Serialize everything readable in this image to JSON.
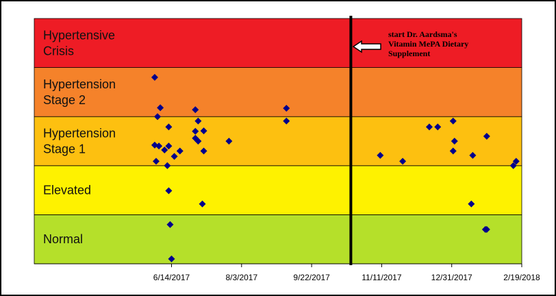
{
  "chart_data": {
    "type": "scatter",
    "xlim": [
      "2017-03-08",
      "2018-02-19"
    ],
    "xticks": [
      {
        "value": "2017-06-14",
        "label": "6/14/2017"
      },
      {
        "value": "2017-08-03",
        "label": "8/3/2017"
      },
      {
        "value": "2017-09-22",
        "label": "9/22/2017"
      },
      {
        "value": "2017-11-11",
        "label": "11/11/2017"
      },
      {
        "value": "2017-12-31",
        "label": "12/31/2017"
      },
      {
        "value": "2018-02-19",
        "label": "2/19/2018"
      }
    ],
    "ylim": [
      0,
      5
    ],
    "bands": [
      {
        "lines": [
          "Normal"
        ],
        "from": 0,
        "to": 1,
        "color": "#b5e02a"
      },
      {
        "lines": [
          "Elevated"
        ],
        "from": 1,
        "to": 2,
        "color": "#fef200"
      },
      {
        "lines": [
          "Hypertension",
          "Stage 1"
        ],
        "from": 2,
        "to": 3,
        "color": "#fdc010"
      },
      {
        "lines": [
          "Hypertension",
          "Stage 2"
        ],
        "from": 3,
        "to": 4,
        "color": "#f5822a"
      },
      {
        "lines": [
          "Hypertensive",
          "Crisis"
        ],
        "from": 4,
        "to": 5,
        "color": "#ee1c25"
      }
    ],
    "marker_line": {
      "x": "2017-10-20",
      "lines": [
        "start Dr. Aardsma's",
        "Vitamin MePA Dietary",
        "Supplement"
      ]
    },
    "series": [
      {
        "color": "#00008b",
        "x": [
          "2017-06-02",
          "2017-06-06",
          "2017-06-04",
          "2017-06-12",
          "2017-06-02",
          "2017-06-05",
          "2017-06-09",
          "2017-06-12",
          "2017-06-03",
          "2017-06-16",
          "2017-06-20",
          "2017-06-11",
          "2017-06-12",
          "2017-06-13",
          "2017-06-14",
          "2017-07-01",
          "2017-07-03",
          "2017-07-01",
          "2017-07-07",
          "2017-07-01",
          "2017-07-03",
          "2017-07-07",
          "2017-07-06",
          "2017-07-25",
          "2017-09-04",
          "2017-09-04",
          "2017-11-10",
          "2017-11-26",
          "2017-12-15",
          "2017-12-21",
          "2018-01-01",
          "2018-01-02",
          "2018-01-01",
          "2018-01-15",
          "2018-01-25",
          "2018-01-14",
          "2018-01-24",
          "2018-01-25",
          "2018-02-13",
          "2018-02-15"
        ],
        "values": [
          3.8,
          3.18,
          3.0,
          2.79,
          2.42,
          2.4,
          2.32,
          2.4,
          2.09,
          2.19,
          2.3,
          2.0,
          1.49,
          0.8,
          0.1,
          3.14,
          2.91,
          2.7,
          2.71,
          2.56,
          2.5,
          2.3,
          1.22,
          2.5,
          3.17,
          2.91,
          2.21,
          2.09,
          2.79,
          2.79,
          2.91,
          2.5,
          2.3,
          2.21,
          2.6,
          1.22,
          0.7,
          0.7,
          2.0,
          2.09
        ]
      }
    ]
  }
}
